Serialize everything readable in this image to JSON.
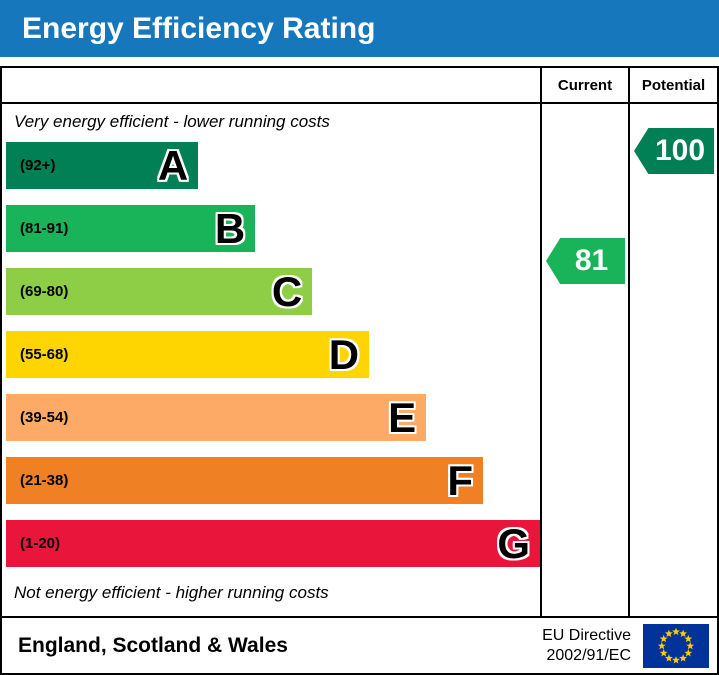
{
  "title_bar": {
    "title": "Energy Efficiency Rating"
  },
  "chart_data": {
    "type": "bar",
    "title": "Energy Efficiency Rating",
    "columns": {
      "current": "Current",
      "potential": "Potential"
    },
    "notes": {
      "top": "Very energy efficient - lower running costs",
      "bottom": "Not energy efficient - higher running costs"
    },
    "bands": [
      {
        "letter": "A",
        "range_label": "(92+)",
        "min": 92,
        "max": 100,
        "color": "#008054"
      },
      {
        "letter": "B",
        "range_label": "(81-91)",
        "min": 81,
        "max": 91,
        "color": "#19b459"
      },
      {
        "letter": "C",
        "range_label": "(69-80)",
        "min": 69,
        "max": 80,
        "color": "#8dce46"
      },
      {
        "letter": "D",
        "range_label": "(55-68)",
        "min": 55,
        "max": 68,
        "color": "#ffd500"
      },
      {
        "letter": "E",
        "range_label": "(39-54)",
        "min": 39,
        "max": 54,
        "color": "#fcaa65"
      },
      {
        "letter": "F",
        "range_label": "(21-38)",
        "min": 21,
        "max": 38,
        "color": "#ef8023"
      },
      {
        "letter": "G",
        "range_label": "(1-20)",
        "min": 1,
        "max": 20,
        "color": "#e9153b"
      }
    ],
    "markers": {
      "current": {
        "value": 81,
        "band": "B",
        "color": "#19b459"
      },
      "potential": {
        "value": 100,
        "band": "A",
        "color": "#008054"
      }
    }
  },
  "footer": {
    "region": "England, Scotland & Wales",
    "directive_line1": "EU Directive",
    "directive_line2": "2002/91/EC"
  },
  "theme": {
    "title_bg": "#1777bc",
    "title_text": "#ffffff",
    "border": "#000000",
    "eu_flag_bg": "#003399",
    "eu_star": "#ffcc00"
  }
}
